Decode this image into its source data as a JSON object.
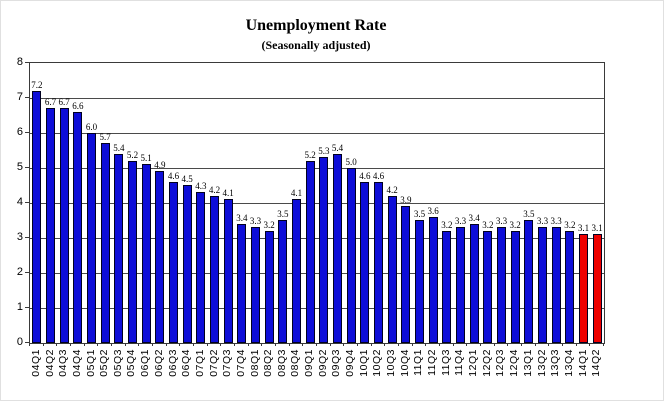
{
  "chart_data": {
    "type": "bar",
    "title": "Unemployment Rate",
    "subtitle": "(Seasonally adjusted)",
    "xlabel": "",
    "ylabel": "",
    "ylim": [
      0,
      8
    ],
    "yticks": [
      0,
      1,
      2,
      3,
      4,
      5,
      6,
      7,
      8
    ],
    "grid": true,
    "legend_position": "none",
    "value_labels": true,
    "bar_color": "#0D0DD8",
    "bar_border_color": "#000020",
    "highlight": {
      "indices": [
        40,
        41
      ],
      "color": "#EE0000"
    },
    "categories": [
      "04Q1",
      "04Q2",
      "04Q3",
      "04Q4",
      "05Q1",
      "05Q2",
      "05Q3",
      "05Q4",
      "06Q1",
      "06Q2",
      "06Q3",
      "06Q4",
      "07Q1",
      "07Q2",
      "07Q3",
      "07Q4",
      "08Q1",
      "08Q2",
      "08Q3",
      "08Q4",
      "09Q1",
      "09Q2",
      "09Q3",
      "09Q4",
      "10Q1",
      "10Q2",
      "10Q3",
      "10Q4",
      "11Q1",
      "11Q2",
      "11Q3",
      "11Q4",
      "12Q1",
      "12Q2",
      "12Q3",
      "12Q4",
      "13Q1",
      "13Q2",
      "13Q3",
      "13Q4",
      "14Q1",
      "14Q2"
    ],
    "values": [
      7.2,
      6.7,
      6.7,
      6.6,
      6.0,
      5.7,
      5.4,
      5.2,
      5.1,
      4.9,
      4.6,
      4.5,
      4.3,
      4.2,
      4.1,
      3.4,
      3.3,
      3.2,
      3.5,
      4.1,
      5.2,
      5.3,
      5.4,
      5.0,
      4.6,
      4.6,
      4.2,
      3.9,
      3.5,
      3.6,
      3.2,
      3.3,
      3.4,
      3.2,
      3.3,
      3.2,
      3.5,
      3.3,
      3.3,
      3.2,
      3.1,
      3.1
    ]
  }
}
